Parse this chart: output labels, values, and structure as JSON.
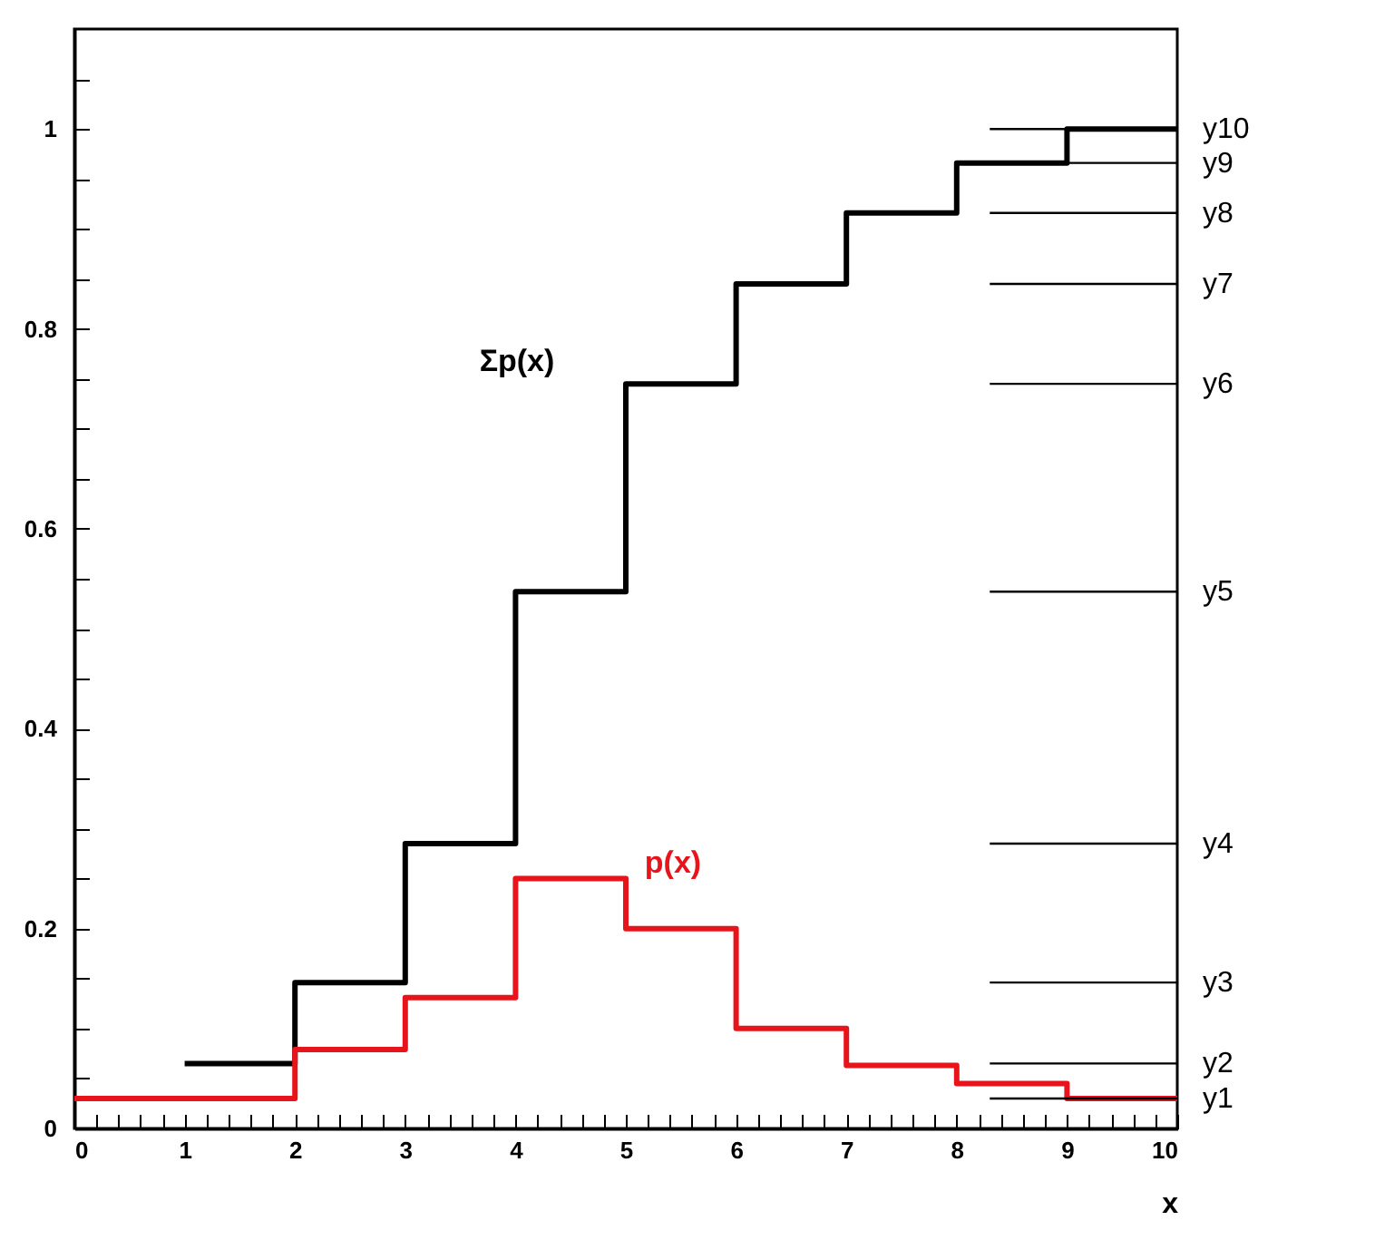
{
  "chart_data": {
    "type": "step",
    "xlabel": "x",
    "x": [
      0,
      1,
      2,
      3,
      4,
      5,
      6,
      7,
      8,
      9,
      10
    ],
    "series": [
      {
        "name": "Σp(x)",
        "color": "#000000",
        "values": [
          null,
          0.065,
          0.146,
          0.285,
          0.537,
          0.745,
          0.845,
          0.916,
          0.966,
          1.0,
          1.0
        ]
      },
      {
        "name": "p(x)",
        "color": "#e8141b",
        "values": [
          0.03,
          0.03,
          0.079,
          0.131,
          0.25,
          0.2,
          0.1,
          0.063,
          0.045,
          0.03,
          0.03
        ]
      }
    ],
    "xlim": [
      0,
      10
    ],
    "xticks": [
      0,
      {
        "value": 0.2,
        "label": null
      },
      {
        "value": 0.4,
        "label": null
      },
      {
        "value": 0.6,
        "label": null
      },
      {
        "value": 0.8,
        "label": null
      },
      1,
      {
        "value": 1.2,
        "label": null
      },
      {
        "value": 1.4,
        "label": null
      },
      {
        "value": 1.6,
        "label": null
      },
      {
        "value": 1.8,
        "label": null
      },
      2,
      {
        "value": 2.2,
        "label": null
      },
      {
        "value": 2.4,
        "label": null
      },
      {
        "value": 2.6,
        "label": null
      },
      {
        "value": 2.8,
        "label": null
      },
      3,
      {
        "value": 3.2,
        "label": null
      },
      {
        "value": 3.4,
        "label": null
      },
      {
        "value": 3.6,
        "label": null
      },
      {
        "value": 3.8,
        "label": null
      },
      4,
      {
        "value": 4.2,
        "label": null
      },
      {
        "value": 4.4,
        "label": null
      },
      {
        "value": 4.6,
        "label": null
      },
      {
        "value": 4.8,
        "label": null
      },
      5,
      {
        "value": 5.2,
        "label": null
      },
      {
        "value": 5.4,
        "label": null
      },
      {
        "value": 5.6,
        "label": null
      },
      {
        "value": 5.8,
        "label": null
      },
      6,
      {
        "value": 6.2,
        "label": null
      },
      {
        "value": 6.4,
        "label": null
      },
      {
        "value": 6.6,
        "label": null
      },
      {
        "value": 6.8,
        "label": null
      },
      7,
      {
        "value": 7.2,
        "label": null
      },
      {
        "value": 7.4,
        "label": null
      },
      {
        "value": 7.6,
        "label": null
      },
      {
        "value": 7.8,
        "label": null
      },
      8,
      {
        "value": 8.2,
        "label": null
      },
      {
        "value": 8.4,
        "label": null
      },
      {
        "value": 8.6,
        "label": null
      },
      {
        "value": 8.8,
        "label": null
      },
      9,
      {
        "value": 9.2,
        "label": null
      },
      {
        "value": 9.4,
        "label": null
      },
      {
        "value": 9.6,
        "label": null
      },
      {
        "value": 9.8,
        "label": null
      },
      10
    ],
    "ylim": [
      0,
      1.1
    ],
    "yticks": [
      0,
      {
        "value": 0.05,
        "label": null
      },
      {
        "value": 0.1,
        "label": null
      },
      {
        "value": 0.15,
        "label": null
      },
      0.2,
      {
        "value": 0.25,
        "label": null
      },
      {
        "value": 0.3,
        "label": null
      },
      {
        "value": 0.35,
        "label": null
      },
      0.4,
      {
        "value": 0.45,
        "label": null
      },
      {
        "value": 0.5,
        "label": null
      },
      {
        "value": 0.55,
        "label": null
      },
      0.6,
      {
        "value": 0.65,
        "label": null
      },
      {
        "value": 0.7,
        "label": null
      },
      {
        "value": 0.75,
        "label": null
      },
      0.8,
      {
        "value": 0.85,
        "label": null
      },
      {
        "value": 0.9,
        "label": null
      },
      {
        "value": 0.95,
        "label": null
      },
      1,
      {
        "value": 1.05,
        "label": null
      }
    ],
    "ref_lines": [
      {
        "axis": "y",
        "value": 0.03,
        "label": "y1"
      },
      {
        "axis": "y",
        "value": 0.065,
        "label": "y2"
      },
      {
        "axis": "y",
        "value": 0.146,
        "label": "y3"
      },
      {
        "axis": "y",
        "value": 0.285,
        "label": "y4"
      },
      {
        "axis": "y",
        "value": 0.537,
        "label": "y5"
      },
      {
        "axis": "y",
        "value": 0.745,
        "label": "y6"
      },
      {
        "axis": "y",
        "value": 0.845,
        "label": "y7"
      },
      {
        "axis": "y",
        "value": 0.916,
        "label": "y8"
      },
      {
        "axis": "y",
        "value": 0.966,
        "label": "y9"
      },
      {
        "axis": "y",
        "value": 1.0,
        "label": "y10"
      }
    ],
    "grid": false,
    "line_style": "solid",
    "marker": "none"
  }
}
